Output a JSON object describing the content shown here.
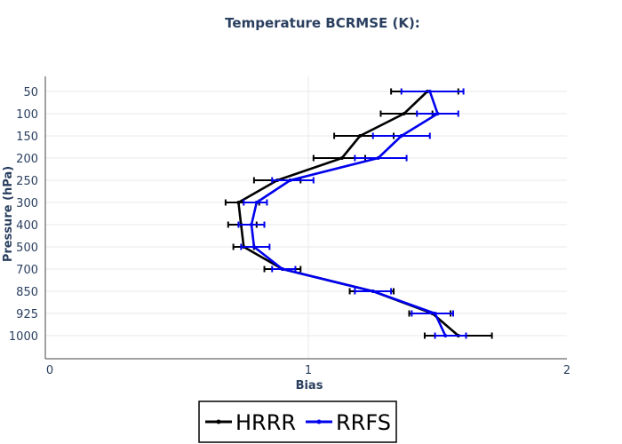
{
  "chart_data": {
    "type": "line",
    "title": "Temperature BCRMSE (K):",
    "xlabel": "Bias",
    "ylabel": "Pressure (hPa)",
    "categories": [
      "50",
      "100",
      "150",
      "200",
      "250",
      "300",
      "400",
      "500",
      "700",
      "850",
      "925",
      "1000"
    ],
    "xlim": [
      0,
      2
    ],
    "xticks": [
      "0",
      "1",
      "2"
    ],
    "xtick_values": [
      0,
      1,
      2
    ],
    "grid": true,
    "legend_position": "bottom-center",
    "series": [
      {
        "name": "HRRR",
        "color": "#000000",
        "values": [
          1.46,
          1.37,
          1.2,
          1.13,
          0.88,
          0.73,
          0.74,
          0.75,
          0.9,
          1.25,
          1.48,
          1.58
        ],
        "err_low": [
          1.32,
          1.28,
          1.1,
          1.02,
          0.79,
          0.68,
          0.69,
          0.71,
          0.83,
          1.16,
          1.39,
          1.45
        ],
        "err_high": [
          1.58,
          1.48,
          1.33,
          1.22,
          0.97,
          0.81,
          0.8,
          0.79,
          0.97,
          1.33,
          1.55,
          1.71
        ]
      },
      {
        "name": "RRFS",
        "color": "#0000ee",
        "values": [
          1.47,
          1.5,
          1.36,
          1.27,
          0.93,
          0.8,
          0.78,
          0.79,
          0.9,
          1.25,
          1.49,
          1.53
        ],
        "err_low": [
          1.36,
          1.42,
          1.25,
          1.18,
          0.86,
          0.75,
          0.73,
          0.74,
          0.86,
          1.18,
          1.4,
          1.49
        ],
        "err_high": [
          1.6,
          1.58,
          1.47,
          1.38,
          1.02,
          0.84,
          0.83,
          0.85,
          0.95,
          1.32,
          1.56,
          1.61
        ]
      }
    ]
  }
}
